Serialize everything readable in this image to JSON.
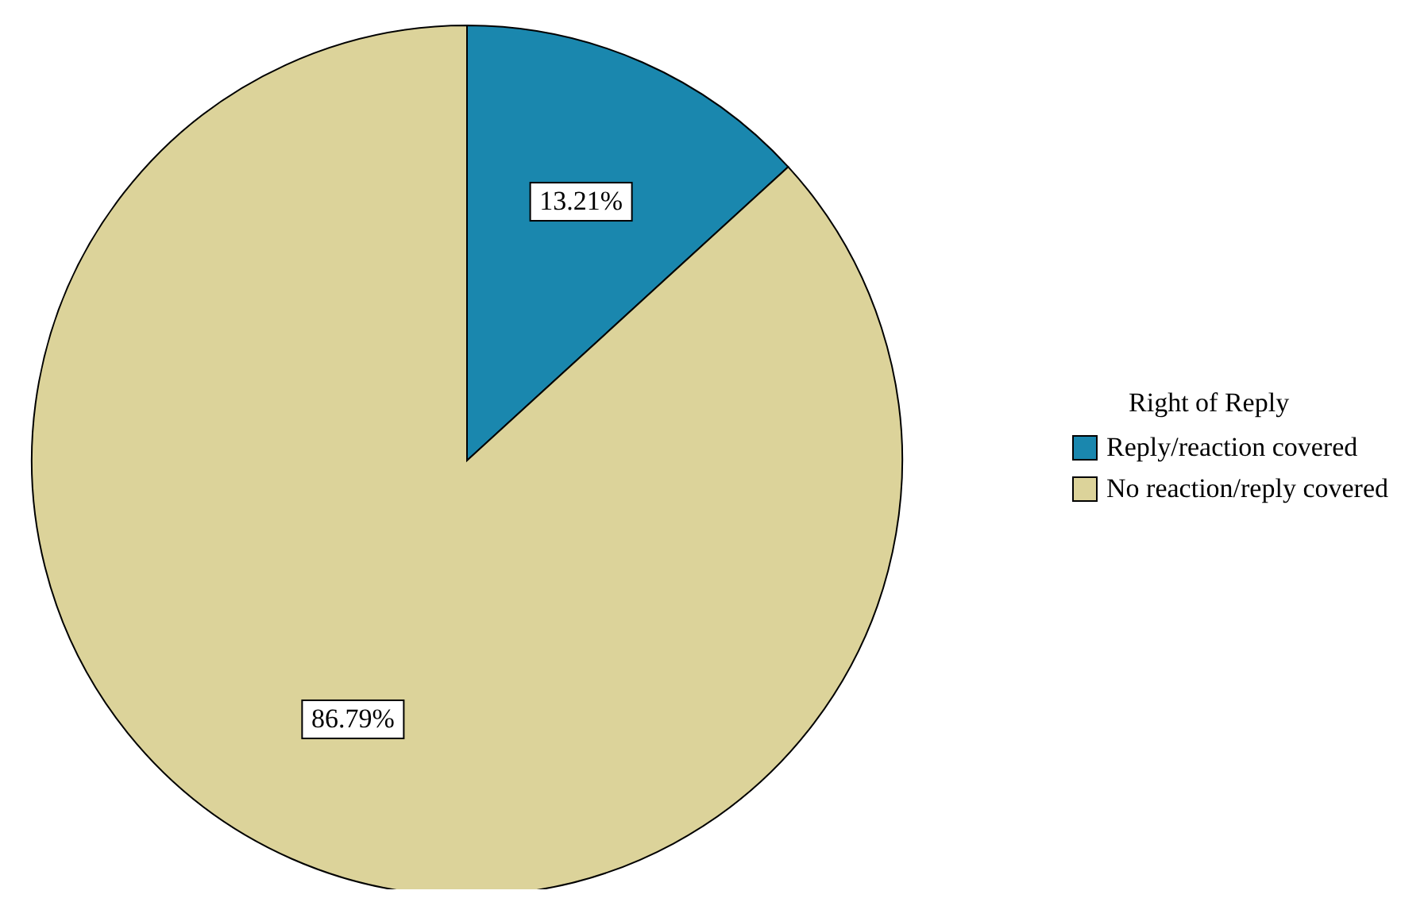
{
  "chart_data": {
    "type": "pie",
    "legend_title": "Right of Reply",
    "categories": [
      "Reply/reaction covered",
      "No reaction/reply covered"
    ],
    "values": [
      13.21,
      86.79
    ],
    "colors": [
      "#1a87ae",
      "#dcd39a"
    ],
    "value_labels": [
      "13.21%",
      "86.79%"
    ],
    "legend": "right"
  }
}
